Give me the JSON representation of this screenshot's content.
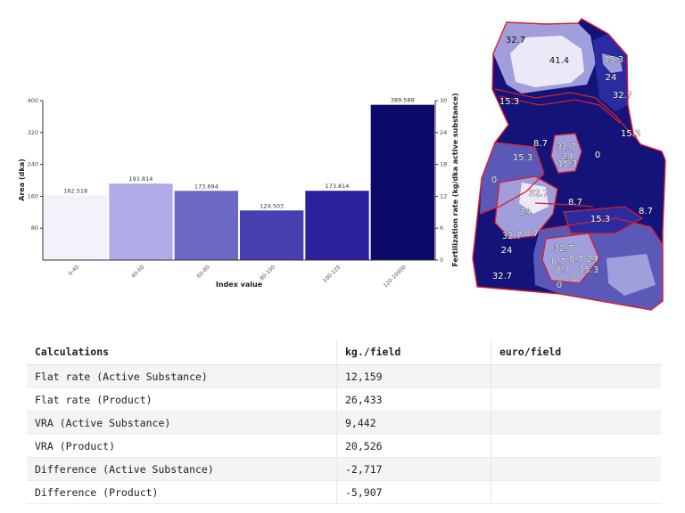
{
  "chart_data": {
    "type": "bar",
    "categories": [
      "0-40",
      "40-60",
      "60-80",
      "80-100",
      "100-120",
      "120-10000"
    ],
    "values": [
      162.518,
      191.814,
      173.694,
      124.503,
      173.814,
      389.588
    ],
    "value_labels": [
      "162.518",
      "191.814",
      "173.694",
      "124.503",
      "173.814",
      "389.588"
    ],
    "bar_colors": [
      "#f3f2fb",
      "#b0acea",
      "#6c68c5",
      "#4840b0",
      "#2a1f9c",
      "#0b0a6b"
    ],
    "xlabel": "Index value",
    "ylabel": "Area (dka)",
    "y2label": "Fertilization rate (kg/dka active substance)",
    "ylim": [
      0,
      400
    ],
    "yticks": [
      "400",
      "320",
      "240",
      "160",
      "80"
    ],
    "y2lim": [
      0,
      30
    ],
    "y2ticks": [
      "30",
      "24",
      "18",
      "12",
      "6",
      "0"
    ],
    "grid": false,
    "legend": "none"
  },
  "map": {
    "palette": {
      "dark": "#14137a",
      "darkmid": "#2b2ba0",
      "mid": "#5a59b7",
      "light": "#a09fdb",
      "lightest": "#ebe9f8",
      "contour": "#d3202f",
      "outline": "#e11d33"
    },
    "labels": [
      "32.7",
      "41.4",
      "15.3",
      "24",
      "32.7",
      "15.3",
      "15.3",
      "8.7",
      "32.7",
      "24",
      "15.3",
      "0",
      "15.3",
      "0",
      "32.7",
      "8.7",
      "24",
      "15.3",
      "8.7",
      "32.7",
      "8.7",
      "24",
      "32.7",
      "24",
      "8.7",
      "8.7",
      "15.3",
      "0",
      "8.7",
      "0",
      "32.7"
    ]
  },
  "calculations": {
    "headers": [
      "Calculations",
      "kg./field",
      "euro/field"
    ],
    "rows": [
      {
        "label": "Flat rate (Active Substance)",
        "kg": "12,159",
        "euro": ""
      },
      {
        "label": "Flat rate (Product)",
        "kg": "26,433",
        "euro": ""
      },
      {
        "label": "VRA (Active Substance)",
        "kg": "9,442",
        "euro": ""
      },
      {
        "label": "VRA (Product)",
        "kg": "20,526",
        "euro": ""
      },
      {
        "label": "Difference (Active Substance)",
        "kg": "-2,717",
        "euro": ""
      },
      {
        "label": "Difference (Product)",
        "kg": "-5,907",
        "euro": ""
      }
    ]
  }
}
